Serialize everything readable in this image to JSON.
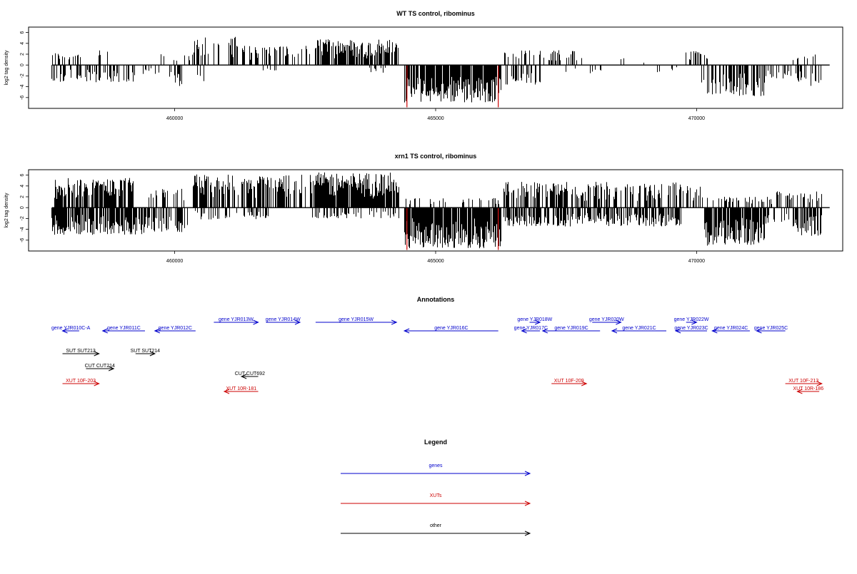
{
  "chart_data": [
    {
      "type": "bar",
      "title": "WT TS control, ribominus",
      "ylabel": "log2 tag density",
      "xlabel": "",
      "xlim": [
        457200,
        472800
      ],
      "ylim": [
        -8,
        7
      ],
      "y_ticks": [
        6,
        4,
        2,
        0,
        -2,
        -4,
        -6
      ],
      "x_ticks": [
        460000,
        465000,
        470000
      ],
      "highlight_color": "#cc0000",
      "highlights": [
        {
          "x": 464450,
          "y": -7.8
        },
        {
          "x": 466200,
          "y": -7.8
        }
      ],
      "segments": [
        {
          "from": 457650,
          "to": 458250,
          "sign": 1,
          "max": 2.3,
          "density": 0.35
        },
        {
          "from": 458550,
          "to": 458850,
          "sign": 1,
          "max": 3.3,
          "density": 0.2
        },
        {
          "from": 457650,
          "to": 459250,
          "sign": -1,
          "max": 3.2,
          "density": 0.45
        },
        {
          "from": 459350,
          "to": 459700,
          "sign": -1,
          "max": 1.8,
          "density": 0.25
        },
        {
          "from": 459700,
          "to": 460350,
          "sign": 1,
          "max": 2.0,
          "density": 0.2
        },
        {
          "from": 459850,
          "to": 460150,
          "sign": -1,
          "max": 4.2,
          "density": 0.4
        },
        {
          "from": 460350,
          "to": 461250,
          "sign": 1,
          "max": 5.3,
          "density": 0.35
        },
        {
          "from": 461250,
          "to": 462600,
          "sign": 1,
          "max": 3.6,
          "density": 0.4
        },
        {
          "from": 460400,
          "to": 460600,
          "sign": -1,
          "max": 3.0,
          "density": 0.4
        },
        {
          "from": 461700,
          "to": 462000,
          "sign": -1,
          "max": 1.2,
          "density": 0.2
        },
        {
          "from": 462700,
          "to": 464300,
          "sign": 1,
          "max": 4.8,
          "density": 0.75
        },
        {
          "from": 463700,
          "to": 464100,
          "sign": -1,
          "max": 1.5,
          "density": 0.2
        },
        {
          "from": 464400,
          "to": 466250,
          "sign": -1,
          "max": 7.0,
          "density": 0.9
        },
        {
          "from": 466300,
          "to": 467800,
          "sign": 1,
          "max": 2.8,
          "density": 0.25
        },
        {
          "from": 466300,
          "to": 467000,
          "sign": -1,
          "max": 3.6,
          "density": 0.35
        },
        {
          "from": 467500,
          "to": 468200,
          "sign": -1,
          "max": 1.5,
          "density": 0.2
        },
        {
          "from": 468500,
          "to": 469200,
          "sign": 1,
          "max": 1.5,
          "density": 0.12
        },
        {
          "from": 469200,
          "to": 469700,
          "sign": -1,
          "max": 1.5,
          "density": 0.15
        },
        {
          "from": 469800,
          "to": 470200,
          "sign": 1,
          "max": 2.7,
          "density": 0.3
        },
        {
          "from": 470100,
          "to": 471300,
          "sign": -1,
          "max": 5.8,
          "density": 0.6
        },
        {
          "from": 471300,
          "to": 471900,
          "sign": -1,
          "max": 2.5,
          "density": 0.25
        },
        {
          "from": 471900,
          "to": 472400,
          "sign": -1,
          "max": 4.0,
          "density": 0.5
        },
        {
          "from": 471800,
          "to": 472300,
          "sign": 1,
          "max": 2.2,
          "density": 0.25
        }
      ]
    },
    {
      "type": "bar",
      "title": "xrn1 TS control, ribominus",
      "ylabel": "log2 tag density",
      "xlabel": "",
      "xlim": [
        457200,
        472800
      ],
      "ylim": [
        -8,
        7
      ],
      "y_ticks": [
        6,
        4,
        2,
        0,
        -2,
        -4,
        -6
      ],
      "x_ticks": [
        460000,
        465000,
        470000
      ],
      "highlight_color": "#cc0000",
      "highlights": [
        {
          "x": 464450,
          "y": -7.8
        },
        {
          "x": 466200,
          "y": -7.8
        }
      ],
      "segments": [
        {
          "from": 457650,
          "to": 459200,
          "sign": 1,
          "max": 5.5,
          "density": 0.75
        },
        {
          "from": 457650,
          "to": 459500,
          "sign": -1,
          "max": 5.0,
          "density": 0.8
        },
        {
          "from": 459500,
          "to": 460250,
          "sign": -1,
          "max": 4.5,
          "density": 0.55
        },
        {
          "from": 459500,
          "to": 460200,
          "sign": 1,
          "max": 3.5,
          "density": 0.35
        },
        {
          "from": 460350,
          "to": 462500,
          "sign": 1,
          "max": 6.2,
          "density": 0.7
        },
        {
          "from": 460350,
          "to": 461800,
          "sign": -1,
          "max": 2.2,
          "density": 0.3
        },
        {
          "from": 462600,
          "to": 464300,
          "sign": 1,
          "max": 6.5,
          "density": 0.95
        },
        {
          "from": 462600,
          "to": 464300,
          "sign": -1,
          "max": 2.0,
          "density": 0.3
        },
        {
          "from": 464400,
          "to": 466250,
          "sign": -1,
          "max": 7.5,
          "density": 0.95
        },
        {
          "from": 464400,
          "to": 466250,
          "sign": 1,
          "max": 1.8,
          "density": 0.2
        },
        {
          "from": 466300,
          "to": 469700,
          "sign": 1,
          "max": 4.8,
          "density": 0.55
        },
        {
          "from": 466300,
          "to": 469700,
          "sign": -1,
          "max": 3.5,
          "density": 0.6
        },
        {
          "from": 469700,
          "to": 470150,
          "sign": 1,
          "max": 4.2,
          "density": 0.45
        },
        {
          "from": 470150,
          "to": 471300,
          "sign": -1,
          "max": 7.0,
          "density": 0.9
        },
        {
          "from": 470150,
          "to": 471500,
          "sign": 1,
          "max": 2.0,
          "density": 0.3
        },
        {
          "from": 471300,
          "to": 471900,
          "sign": -1,
          "max": 3.0,
          "density": 0.4
        },
        {
          "from": 471500,
          "to": 472400,
          "sign": 1,
          "max": 3.0,
          "density": 0.35
        },
        {
          "from": 471850,
          "to": 472400,
          "sign": -1,
          "max": 5.2,
          "density": 0.7
        }
      ]
    }
  ],
  "annotations": {
    "title": "Annotations",
    "features": [
      {
        "label": "gene YJR010C-A",
        "color": "#0000cc",
        "strand": "-",
        "from": 457850,
        "to": 458170,
        "row": 3
      },
      {
        "label": "gene YJR011C",
        "color": "#0000cc",
        "strand": "-",
        "from": 458620,
        "to": 459430,
        "row": 3
      },
      {
        "label": "gene YJR012C",
        "color": "#0000cc",
        "strand": "-",
        "from": 459620,
        "to": 460400,
        "row": 3
      },
      {
        "label": "gene YJR013W",
        "color": "#0000cc",
        "strand": "+",
        "from": 460750,
        "to": 461600,
        "row": 2
      },
      {
        "label": "gene YJR014W",
        "color": "#0000cc",
        "strand": "+",
        "from": 461750,
        "to": 462400,
        "row": 2
      },
      {
        "label": "gene YJR015W",
        "color": "#0000cc",
        "strand": "+",
        "from": 462700,
        "to": 464250,
        "row": 2
      },
      {
        "label": "gene YJR016C",
        "color": "#0000cc",
        "strand": "-",
        "from": 464400,
        "to": 466200,
        "row": 3
      },
      {
        "label": "gene YJR017C",
        "color": "#0000cc",
        "strand": "-",
        "from": 466650,
        "to": 467000,
        "row": 3
      },
      {
        "label": "gene YJR018W",
        "color": "#0000cc",
        "strand": "+",
        "from": 466800,
        "to": 467000,
        "row": 2
      },
      {
        "label": "gene YJR019C",
        "color": "#0000cc",
        "strand": "-",
        "from": 467050,
        "to": 468150,
        "row": 3
      },
      {
        "label": "gene YJR020W",
        "color": "#0000cc",
        "strand": "+",
        "from": 468000,
        "to": 468550,
        "row": 2
      },
      {
        "label": "gene YJR021C",
        "color": "#0000cc",
        "strand": "-",
        "from": 468380,
        "to": 469420,
        "row": 3
      },
      {
        "label": "gene YJR022W",
        "color": "#0000cc",
        "strand": "+",
        "from": 469800,
        "to": 470000,
        "row": 2
      },
      {
        "label": "gene YJR023C",
        "color": "#0000cc",
        "strand": "-",
        "from": 469600,
        "to": 470200,
        "row": 3
      },
      {
        "label": "gene YJR024C",
        "color": "#0000cc",
        "strand": "-",
        "from": 470300,
        "to": 471020,
        "row": 3
      },
      {
        "label": "gene YJR025C",
        "color": "#0000cc",
        "strand": "-",
        "from": 471150,
        "to": 471700,
        "row": 3
      },
      {
        "label": "SUT SUT213",
        "color": "#000000",
        "strand": "+",
        "from": 457850,
        "to": 458550,
        "row": 5
      },
      {
        "label": "SUT SUT214",
        "color": "#000000",
        "strand": "+",
        "from": 459250,
        "to": 459620,
        "row": 5
      },
      {
        "label": "CUT CUT214",
        "color": "#000000",
        "strand": "+",
        "from": 458300,
        "to": 458830,
        "row": 7
      },
      {
        "label": "CUT CUT692",
        "color": "#000000",
        "strand": "-",
        "from": 461280,
        "to": 461600,
        "row": 8
      },
      {
        "label": "XUT 10F-203",
        "color": "#cc0000",
        "strand": "+",
        "from": 457850,
        "to": 458550,
        "row": 9
      },
      {
        "label": "XUT 10R-181",
        "color": "#cc0000",
        "strand": "-",
        "from": 460950,
        "to": 461600,
        "row": 10
      },
      {
        "label": "XUT 10F-209",
        "color": "#cc0000",
        "strand": "+",
        "from": 467220,
        "to": 467890,
        "row": 9
      },
      {
        "label": "XUT 10F-213",
        "color": "#cc0000",
        "strand": "+",
        "from": 471700,
        "to": 472400,
        "row": 9
      },
      {
        "label": "XUT 10R-186",
        "color": "#cc0000",
        "strand": "-",
        "from": 471930,
        "to": 472350,
        "row": 10
      }
    ]
  },
  "legend": {
    "title": "Legend",
    "items": [
      {
        "label": "genes",
        "color": "#0000cc"
      },
      {
        "label": "XUTs",
        "color": "#cc0000"
      },
      {
        "label": "other",
        "color": "#000000"
      }
    ]
  }
}
